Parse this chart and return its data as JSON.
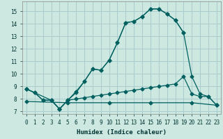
{
  "xlabel": "Humidex (Indice chaleur)",
  "background_color": "#cce8e0",
  "grid_color": "#aacccc",
  "line_color": "#006060",
  "xlim": [
    -0.5,
    23.5
  ],
  "ylim": [
    6.8,
    15.8
  ],
  "yticks": [
    7,
    8,
    9,
    10,
    11,
    12,
    13,
    14,
    15
  ],
  "xticks": [
    0,
    1,
    2,
    3,
    4,
    5,
    6,
    7,
    8,
    9,
    10,
    11,
    12,
    13,
    14,
    15,
    16,
    17,
    18,
    19,
    20,
    21,
    22,
    23
  ],
  "line1_x": [
    0,
    1,
    2,
    3,
    4,
    5,
    6,
    7,
    8,
    9,
    10,
    11,
    12,
    13,
    14,
    15,
    16,
    17,
    18,
    19,
    20,
    21,
    22,
    23
  ],
  "line1_y": [
    8.8,
    8.5,
    7.9,
    7.9,
    7.2,
    7.9,
    8.5,
    9.4,
    10.4,
    10.3,
    11.1,
    12.5,
    14.1,
    14.2,
    14.6,
    15.2,
    15.2,
    14.8,
    14.3,
    13.3,
    9.8,
    8.4,
    8.2,
    7.5
  ],
  "line2_x": [
    0,
    3,
    4,
    5,
    6,
    7,
    8,
    9,
    10,
    11,
    12,
    13,
    14,
    15,
    16,
    17,
    18,
    19
  ],
  "line2_y": [
    8.8,
    7.9,
    7.2,
    7.9,
    8.6,
    9.4,
    10.4,
    10.3,
    11.1,
    12.5,
    14.1,
    14.2,
    14.6,
    15.2,
    15.2,
    14.8,
    14.3,
    13.3
  ],
  "line3_x": [
    0,
    1,
    2,
    3,
    4,
    5,
    6,
    7,
    8,
    9,
    10,
    11,
    12,
    13,
    14,
    15,
    16,
    17,
    18,
    19,
    20,
    21,
    22,
    23
  ],
  "line3_y": [
    8.8,
    8.5,
    7.9,
    7.9,
    7.2,
    7.9,
    8.0,
    8.1,
    8.2,
    8.3,
    8.4,
    8.5,
    8.6,
    8.7,
    8.8,
    8.9,
    9.0,
    9.1,
    9.2,
    9.8,
    8.4,
    8.2,
    8.2,
    7.5
  ],
  "line4_x": [
    0,
    5,
    10,
    15,
    20,
    23
  ],
  "line4_y": [
    7.8,
    7.7,
    7.7,
    7.7,
    7.7,
    7.5
  ]
}
